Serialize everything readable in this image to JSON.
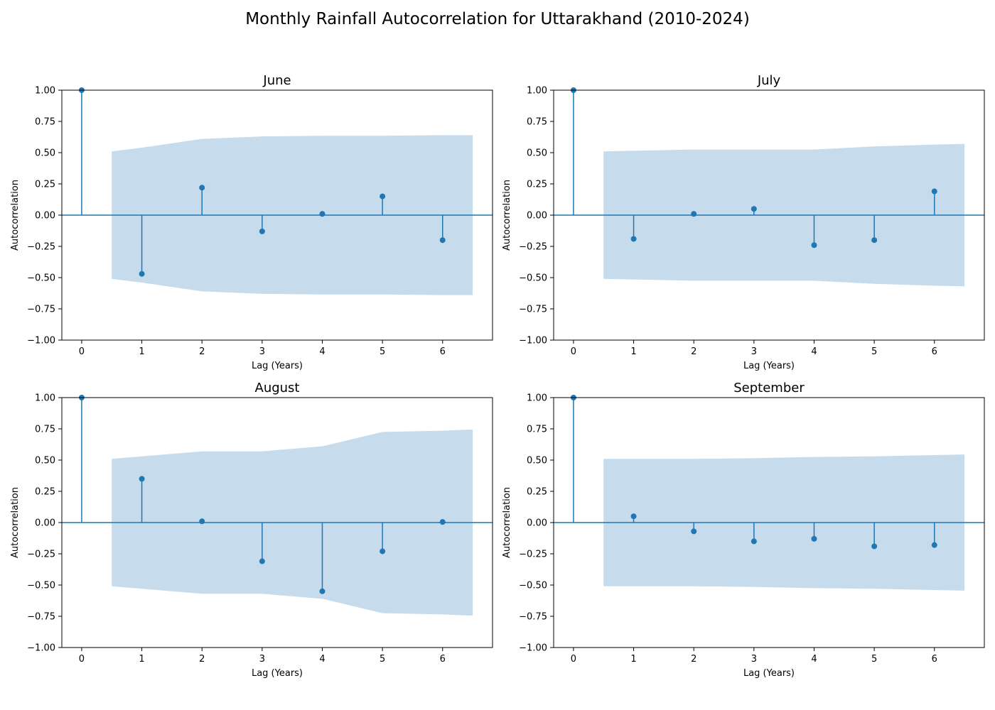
{
  "title": "Monthly Rainfall Autocorrelation for Uttarakhand (2010-2024)",
  "chart_data": [
    {
      "type": "stem",
      "title": "June",
      "xlabel": "Lag (Years)",
      "ylabel": "Autocorrelation",
      "xlim": [
        -0.33,
        6.83
      ],
      "ylim": [
        -1.0,
        1.0
      ],
      "xticks": [
        0,
        1,
        2,
        3,
        4,
        5,
        6
      ],
      "yticks": [
        1.0,
        0.75,
        0.5,
        0.25,
        0.0,
        -0.25,
        -0.5,
        -0.75,
        -1.0
      ],
      "ytick_labels": [
        "1.00",
        "0.75",
        "0.50",
        "0.25",
        "0.00",
        "−0.25",
        "−0.50",
        "−0.75",
        "−1.00"
      ],
      "lags": [
        0,
        1,
        2,
        3,
        4,
        5,
        6
      ],
      "values": [
        1.0,
        -0.47,
        0.22,
        -0.13,
        0.01,
        0.15,
        -0.2
      ],
      "confint": {
        "lags": [
          0.5,
          1,
          2,
          3,
          4,
          5,
          6,
          6.5
        ],
        "upper": [
          0.51,
          0.54,
          0.61,
          0.63,
          0.635,
          0.635,
          0.64,
          0.64
        ]
      },
      "color": "#1f77b4",
      "band_color": "#c6dbec"
    },
    {
      "type": "stem",
      "title": "July",
      "xlabel": "Lag (Years)",
      "ylabel": "Autocorrelation",
      "xlim": [
        -0.33,
        6.83
      ],
      "ylim": [
        -1.0,
        1.0
      ],
      "xticks": [
        0,
        1,
        2,
        3,
        4,
        5,
        6
      ],
      "yticks": [
        1.0,
        0.75,
        0.5,
        0.25,
        0.0,
        -0.25,
        -0.5,
        -0.75,
        -1.0
      ],
      "ytick_labels": [
        "1.00",
        "0.75",
        "0.50",
        "0.25",
        "0.00",
        "−0.25",
        "−0.50",
        "−0.75",
        "−1.00"
      ],
      "lags": [
        0,
        1,
        2,
        3,
        4,
        5,
        6
      ],
      "values": [
        1.0,
        -0.19,
        0.01,
        0.05,
        -0.24,
        -0.2,
        0.19
      ],
      "confint": {
        "lags": [
          0.5,
          1,
          2,
          3,
          4,
          5,
          6,
          6.5
        ],
        "upper": [
          0.51,
          0.515,
          0.525,
          0.525,
          0.525,
          0.55,
          0.565,
          0.57
        ]
      },
      "color": "#1f77b4",
      "band_color": "#c6dbec"
    },
    {
      "type": "stem",
      "title": "August",
      "xlabel": "Lag (Years)",
      "ylabel": "Autocorrelation",
      "xlim": [
        -0.33,
        6.83
      ],
      "ylim": [
        -1.0,
        1.0
      ],
      "xticks": [
        0,
        1,
        2,
        3,
        4,
        5,
        6
      ],
      "yticks": [
        1.0,
        0.75,
        0.5,
        0.25,
        0.0,
        -0.25,
        -0.5,
        -0.75,
        -1.0
      ],
      "ytick_labels": [
        "1.00",
        "0.75",
        "0.50",
        "0.25",
        "0.00",
        "−0.25",
        "−0.50",
        "−0.75",
        "−1.00"
      ],
      "lags": [
        0,
        1,
        2,
        3,
        4,
        5,
        6
      ],
      "values": [
        1.0,
        0.35,
        0.01,
        -0.31,
        -0.55,
        -0.23,
        0.005
      ],
      "confint": {
        "lags": [
          0.5,
          1,
          2,
          3,
          4,
          5,
          6,
          6.5
        ],
        "upper": [
          0.51,
          0.53,
          0.57,
          0.57,
          0.61,
          0.725,
          0.735,
          0.745
        ]
      },
      "color": "#1f77b4",
      "band_color": "#c6dbec"
    },
    {
      "type": "stem",
      "title": "September",
      "xlabel": "Lag (Years)",
      "ylabel": "Autocorrelation",
      "xlim": [
        -0.33,
        6.83
      ],
      "ylim": [
        -1.0,
        1.0
      ],
      "xticks": [
        0,
        1,
        2,
        3,
        4,
        5,
        6
      ],
      "yticks": [
        1.0,
        0.75,
        0.5,
        0.25,
        0.0,
        -0.25,
        -0.5,
        -0.75,
        -1.0
      ],
      "ytick_labels": [
        "1.00",
        "0.75",
        "0.50",
        "0.25",
        "0.00",
        "−0.25",
        "−0.50",
        "−0.75",
        "−1.00"
      ],
      "lags": [
        0,
        1,
        2,
        3,
        4,
        5,
        6
      ],
      "values": [
        1.0,
        0.05,
        -0.07,
        -0.15,
        -0.13,
        -0.19,
        -0.18
      ],
      "confint": {
        "lags": [
          0.5,
          1,
          2,
          3,
          4,
          5,
          6,
          6.5
        ],
        "upper": [
          0.51,
          0.51,
          0.51,
          0.515,
          0.525,
          0.53,
          0.54,
          0.545
        ]
      },
      "color": "#1f77b4",
      "band_color": "#c6dbec"
    }
  ]
}
